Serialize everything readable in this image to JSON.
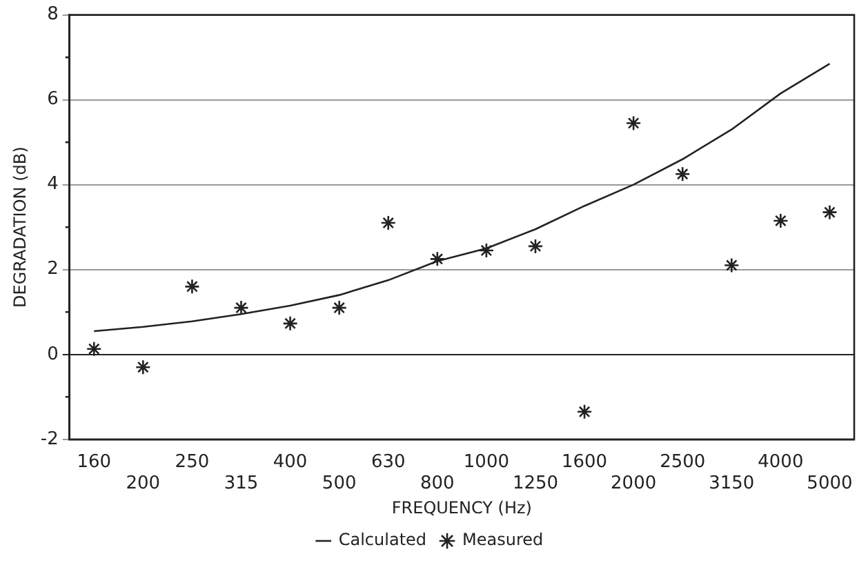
{
  "chart_data": {
    "type": "line",
    "xlabel": "FREQUENCY (Hz)",
    "ylabel": "DEGRADATION (dB)",
    "categories": [
      "160",
      "200",
      "250",
      "315",
      "400",
      "500",
      "630",
      "800",
      "1000",
      "1250",
      "1600",
      "2000",
      "2500",
      "3150",
      "4000",
      "5000"
    ],
    "ylim": [
      -2,
      8
    ],
    "yticks": [
      -2,
      {
        "value": -1,
        "label": null
      },
      0,
      {
        "value": 1,
        "label": null
      },
      2,
      {
        "value": 3,
        "label": null
      },
      4,
      {
        "value": 5,
        "label": null
      },
      6,
      {
        "value": 7,
        "label": null
      },
      8
    ],
    "grid": "y",
    "legend": "bottom",
    "series": [
      {
        "name": "Calculated",
        "type": "line",
        "color": "#222222",
        "marker": "none",
        "line_style": "solid",
        "values": [
          0.55,
          0.65,
          0.78,
          0.95,
          1.15,
          1.4,
          1.75,
          2.2,
          2.5,
          2.95,
          3.5,
          4.0,
          4.6,
          5.3,
          6.15,
          6.85
        ]
      },
      {
        "name": "Measured",
        "type": "scatter",
        "color": "#222222",
        "marker": "cross",
        "values": [
          0.13,
          -0.3,
          1.6,
          1.1,
          0.73,
          1.1,
          3.1,
          2.25,
          2.45,
          2.55,
          -1.35,
          5.45,
          4.25,
          2.1,
          3.15,
          3.35
        ]
      }
    ]
  }
}
